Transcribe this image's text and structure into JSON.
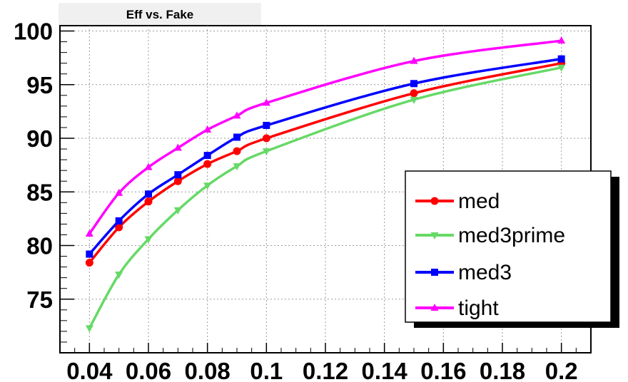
{
  "chart_data": {
    "type": "line",
    "title": "Eff vs. Fake",
    "xlabel": "",
    "ylabel": "",
    "xlim": [
      0.03,
      0.21
    ],
    "ylim": [
      70,
      100.5
    ],
    "x_ticks": [
      0.04,
      0.06,
      0.08,
      0.1,
      0.12,
      0.14,
      0.16,
      0.18,
      0.2
    ],
    "x_tick_labels": [
      "0.04",
      "0.06",
      "0.08",
      "0.1",
      "0.12",
      "0.14",
      "0.16",
      "0.18",
      "0.2"
    ],
    "y_ticks": [
      75,
      80,
      85,
      90,
      95,
      100
    ],
    "y_tick_labels": [
      "75",
      "80",
      "85",
      "90",
      "95",
      "100"
    ],
    "grid": true,
    "legend_position": "bottom-right",
    "series": [
      {
        "name": "med",
        "color": "#ff0000",
        "marker": "circle",
        "x": [
          0.04,
          0.05,
          0.06,
          0.07,
          0.08,
          0.09,
          0.1,
          0.15,
          0.2
        ],
        "y": [
          78.4,
          81.7,
          84.1,
          86.0,
          87.6,
          88.8,
          90.0,
          94.2,
          97.0
        ]
      },
      {
        "name": "med3prime",
        "color": "#66d966",
        "marker": "triangle-down",
        "x": [
          0.04,
          0.05,
          0.06,
          0.07,
          0.08,
          0.09,
          0.1,
          0.15,
          0.2
        ],
        "y": [
          72.3,
          77.3,
          80.6,
          83.3,
          85.6,
          87.4,
          88.8,
          93.6,
          96.6
        ]
      },
      {
        "name": "med3",
        "color": "#0000ff",
        "marker": "square",
        "x": [
          0.04,
          0.05,
          0.06,
          0.07,
          0.08,
          0.09,
          0.1,
          0.15,
          0.2
        ],
        "y": [
          79.2,
          82.3,
          84.8,
          86.6,
          88.4,
          90.1,
          91.2,
          95.1,
          97.4
        ]
      },
      {
        "name": "tight",
        "color": "#ff00ff",
        "marker": "triangle-up",
        "x": [
          0.04,
          0.05,
          0.06,
          0.07,
          0.08,
          0.09,
          0.1,
          0.15,
          0.2
        ],
        "y": [
          81.1,
          84.9,
          87.3,
          89.1,
          90.8,
          92.1,
          93.3,
          97.2,
          99.1
        ]
      }
    ]
  }
}
